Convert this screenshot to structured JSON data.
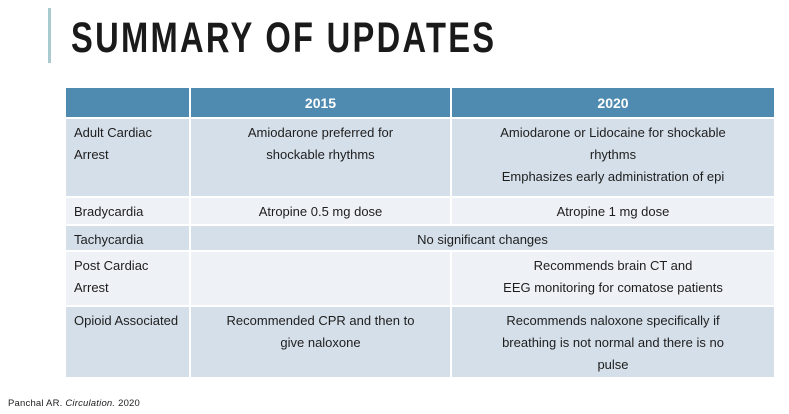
{
  "slide": {
    "title": "SUMMARY OF UPDATES"
  },
  "colors": {
    "header_blue": "#4F8BB0",
    "band_dark": "#D5DFE9",
    "band_light": "#EEF1F6",
    "accent_bar": "#A9CBD0",
    "header_text": "#FFFFFF",
    "body_text": "#1E1E1E"
  },
  "table": {
    "columns": [
      "",
      "2015",
      "2020"
    ],
    "rows": [
      {
        "label": "Adult Cardiac Arrest",
        "y2015": "Amiodarone preferred for\nshockable rhythms",
        "y2020": "Amiodarone or Lidocaine for shockable\nrhythms\nEmphasizes early administration of epi"
      },
      {
        "label": "Bradycardia",
        "y2015": "Atropine 0.5 mg dose",
        "y2020": "Atropine 1 mg dose"
      },
      {
        "label": "Tachycardia",
        "merged": "No significant changes"
      },
      {
        "label": "Post Cardiac Arrest",
        "y2015": "",
        "y2020": "Recommends brain CT and\nEEG monitoring for comatose patients"
      },
      {
        "label": "Opioid Associated",
        "y2015": "Recommended CPR and then to\ngive naloxone",
        "y2020": "Recommends naloxone specifically if\nbreathing is not normal and there is no\npulse"
      }
    ]
  },
  "footer": {
    "part1": "Panchal AR. ",
    "part2": "Circulation.",
    "part3": " 2020"
  }
}
